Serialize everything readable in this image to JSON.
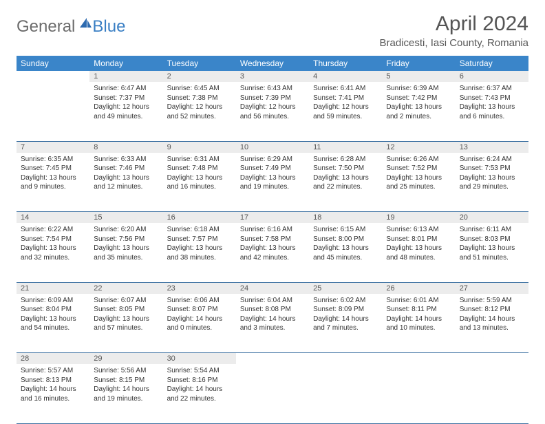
{
  "logo": {
    "part1": "General",
    "part2": "Blue"
  },
  "header": {
    "title": "April 2024",
    "location": "Bradicesti, Iasi County, Romania"
  },
  "dayHeaders": [
    "Sunday",
    "Monday",
    "Tuesday",
    "Wednesday",
    "Thursday",
    "Friday",
    "Saturday"
  ],
  "colors": {
    "headerBar": "#3a85c9",
    "dayNumBg": "#ececec",
    "rowBorder": "#3a6fa0",
    "logoBlue": "#3a7fc4",
    "logoGray": "#6b6b6b"
  },
  "weeks": [
    [
      {
        "num": "",
        "sunrise": "",
        "sunset": "",
        "daylight": ""
      },
      {
        "num": "1",
        "sunrise": "Sunrise: 6:47 AM",
        "sunset": "Sunset: 7:37 PM",
        "daylight": "Daylight: 12 hours and 49 minutes."
      },
      {
        "num": "2",
        "sunrise": "Sunrise: 6:45 AM",
        "sunset": "Sunset: 7:38 PM",
        "daylight": "Daylight: 12 hours and 52 minutes."
      },
      {
        "num": "3",
        "sunrise": "Sunrise: 6:43 AM",
        "sunset": "Sunset: 7:39 PM",
        "daylight": "Daylight: 12 hours and 56 minutes."
      },
      {
        "num": "4",
        "sunrise": "Sunrise: 6:41 AM",
        "sunset": "Sunset: 7:41 PM",
        "daylight": "Daylight: 12 hours and 59 minutes."
      },
      {
        "num": "5",
        "sunrise": "Sunrise: 6:39 AM",
        "sunset": "Sunset: 7:42 PM",
        "daylight": "Daylight: 13 hours and 2 minutes."
      },
      {
        "num": "6",
        "sunrise": "Sunrise: 6:37 AM",
        "sunset": "Sunset: 7:43 PM",
        "daylight": "Daylight: 13 hours and 6 minutes."
      }
    ],
    [
      {
        "num": "7",
        "sunrise": "Sunrise: 6:35 AM",
        "sunset": "Sunset: 7:45 PM",
        "daylight": "Daylight: 13 hours and 9 minutes."
      },
      {
        "num": "8",
        "sunrise": "Sunrise: 6:33 AM",
        "sunset": "Sunset: 7:46 PM",
        "daylight": "Daylight: 13 hours and 12 minutes."
      },
      {
        "num": "9",
        "sunrise": "Sunrise: 6:31 AM",
        "sunset": "Sunset: 7:48 PM",
        "daylight": "Daylight: 13 hours and 16 minutes."
      },
      {
        "num": "10",
        "sunrise": "Sunrise: 6:29 AM",
        "sunset": "Sunset: 7:49 PM",
        "daylight": "Daylight: 13 hours and 19 minutes."
      },
      {
        "num": "11",
        "sunrise": "Sunrise: 6:28 AM",
        "sunset": "Sunset: 7:50 PM",
        "daylight": "Daylight: 13 hours and 22 minutes."
      },
      {
        "num": "12",
        "sunrise": "Sunrise: 6:26 AM",
        "sunset": "Sunset: 7:52 PM",
        "daylight": "Daylight: 13 hours and 25 minutes."
      },
      {
        "num": "13",
        "sunrise": "Sunrise: 6:24 AM",
        "sunset": "Sunset: 7:53 PM",
        "daylight": "Daylight: 13 hours and 29 minutes."
      }
    ],
    [
      {
        "num": "14",
        "sunrise": "Sunrise: 6:22 AM",
        "sunset": "Sunset: 7:54 PM",
        "daylight": "Daylight: 13 hours and 32 minutes."
      },
      {
        "num": "15",
        "sunrise": "Sunrise: 6:20 AM",
        "sunset": "Sunset: 7:56 PM",
        "daylight": "Daylight: 13 hours and 35 minutes."
      },
      {
        "num": "16",
        "sunrise": "Sunrise: 6:18 AM",
        "sunset": "Sunset: 7:57 PM",
        "daylight": "Daylight: 13 hours and 38 minutes."
      },
      {
        "num": "17",
        "sunrise": "Sunrise: 6:16 AM",
        "sunset": "Sunset: 7:58 PM",
        "daylight": "Daylight: 13 hours and 42 minutes."
      },
      {
        "num": "18",
        "sunrise": "Sunrise: 6:15 AM",
        "sunset": "Sunset: 8:00 PM",
        "daylight": "Daylight: 13 hours and 45 minutes."
      },
      {
        "num": "19",
        "sunrise": "Sunrise: 6:13 AM",
        "sunset": "Sunset: 8:01 PM",
        "daylight": "Daylight: 13 hours and 48 minutes."
      },
      {
        "num": "20",
        "sunrise": "Sunrise: 6:11 AM",
        "sunset": "Sunset: 8:03 PM",
        "daylight": "Daylight: 13 hours and 51 minutes."
      }
    ],
    [
      {
        "num": "21",
        "sunrise": "Sunrise: 6:09 AM",
        "sunset": "Sunset: 8:04 PM",
        "daylight": "Daylight: 13 hours and 54 minutes."
      },
      {
        "num": "22",
        "sunrise": "Sunrise: 6:07 AM",
        "sunset": "Sunset: 8:05 PM",
        "daylight": "Daylight: 13 hours and 57 minutes."
      },
      {
        "num": "23",
        "sunrise": "Sunrise: 6:06 AM",
        "sunset": "Sunset: 8:07 PM",
        "daylight": "Daylight: 14 hours and 0 minutes."
      },
      {
        "num": "24",
        "sunrise": "Sunrise: 6:04 AM",
        "sunset": "Sunset: 8:08 PM",
        "daylight": "Daylight: 14 hours and 3 minutes."
      },
      {
        "num": "25",
        "sunrise": "Sunrise: 6:02 AM",
        "sunset": "Sunset: 8:09 PM",
        "daylight": "Daylight: 14 hours and 7 minutes."
      },
      {
        "num": "26",
        "sunrise": "Sunrise: 6:01 AM",
        "sunset": "Sunset: 8:11 PM",
        "daylight": "Daylight: 14 hours and 10 minutes."
      },
      {
        "num": "27",
        "sunrise": "Sunrise: 5:59 AM",
        "sunset": "Sunset: 8:12 PM",
        "daylight": "Daylight: 14 hours and 13 minutes."
      }
    ],
    [
      {
        "num": "28",
        "sunrise": "Sunrise: 5:57 AM",
        "sunset": "Sunset: 8:13 PM",
        "daylight": "Daylight: 14 hours and 16 minutes."
      },
      {
        "num": "29",
        "sunrise": "Sunrise: 5:56 AM",
        "sunset": "Sunset: 8:15 PM",
        "daylight": "Daylight: 14 hours and 19 minutes."
      },
      {
        "num": "30",
        "sunrise": "Sunrise: 5:54 AM",
        "sunset": "Sunset: 8:16 PM",
        "daylight": "Daylight: 14 hours and 22 minutes."
      },
      {
        "num": "",
        "sunrise": "",
        "sunset": "",
        "daylight": ""
      },
      {
        "num": "",
        "sunrise": "",
        "sunset": "",
        "daylight": ""
      },
      {
        "num": "",
        "sunrise": "",
        "sunset": "",
        "daylight": ""
      },
      {
        "num": "",
        "sunrise": "",
        "sunset": "",
        "daylight": ""
      }
    ]
  ]
}
